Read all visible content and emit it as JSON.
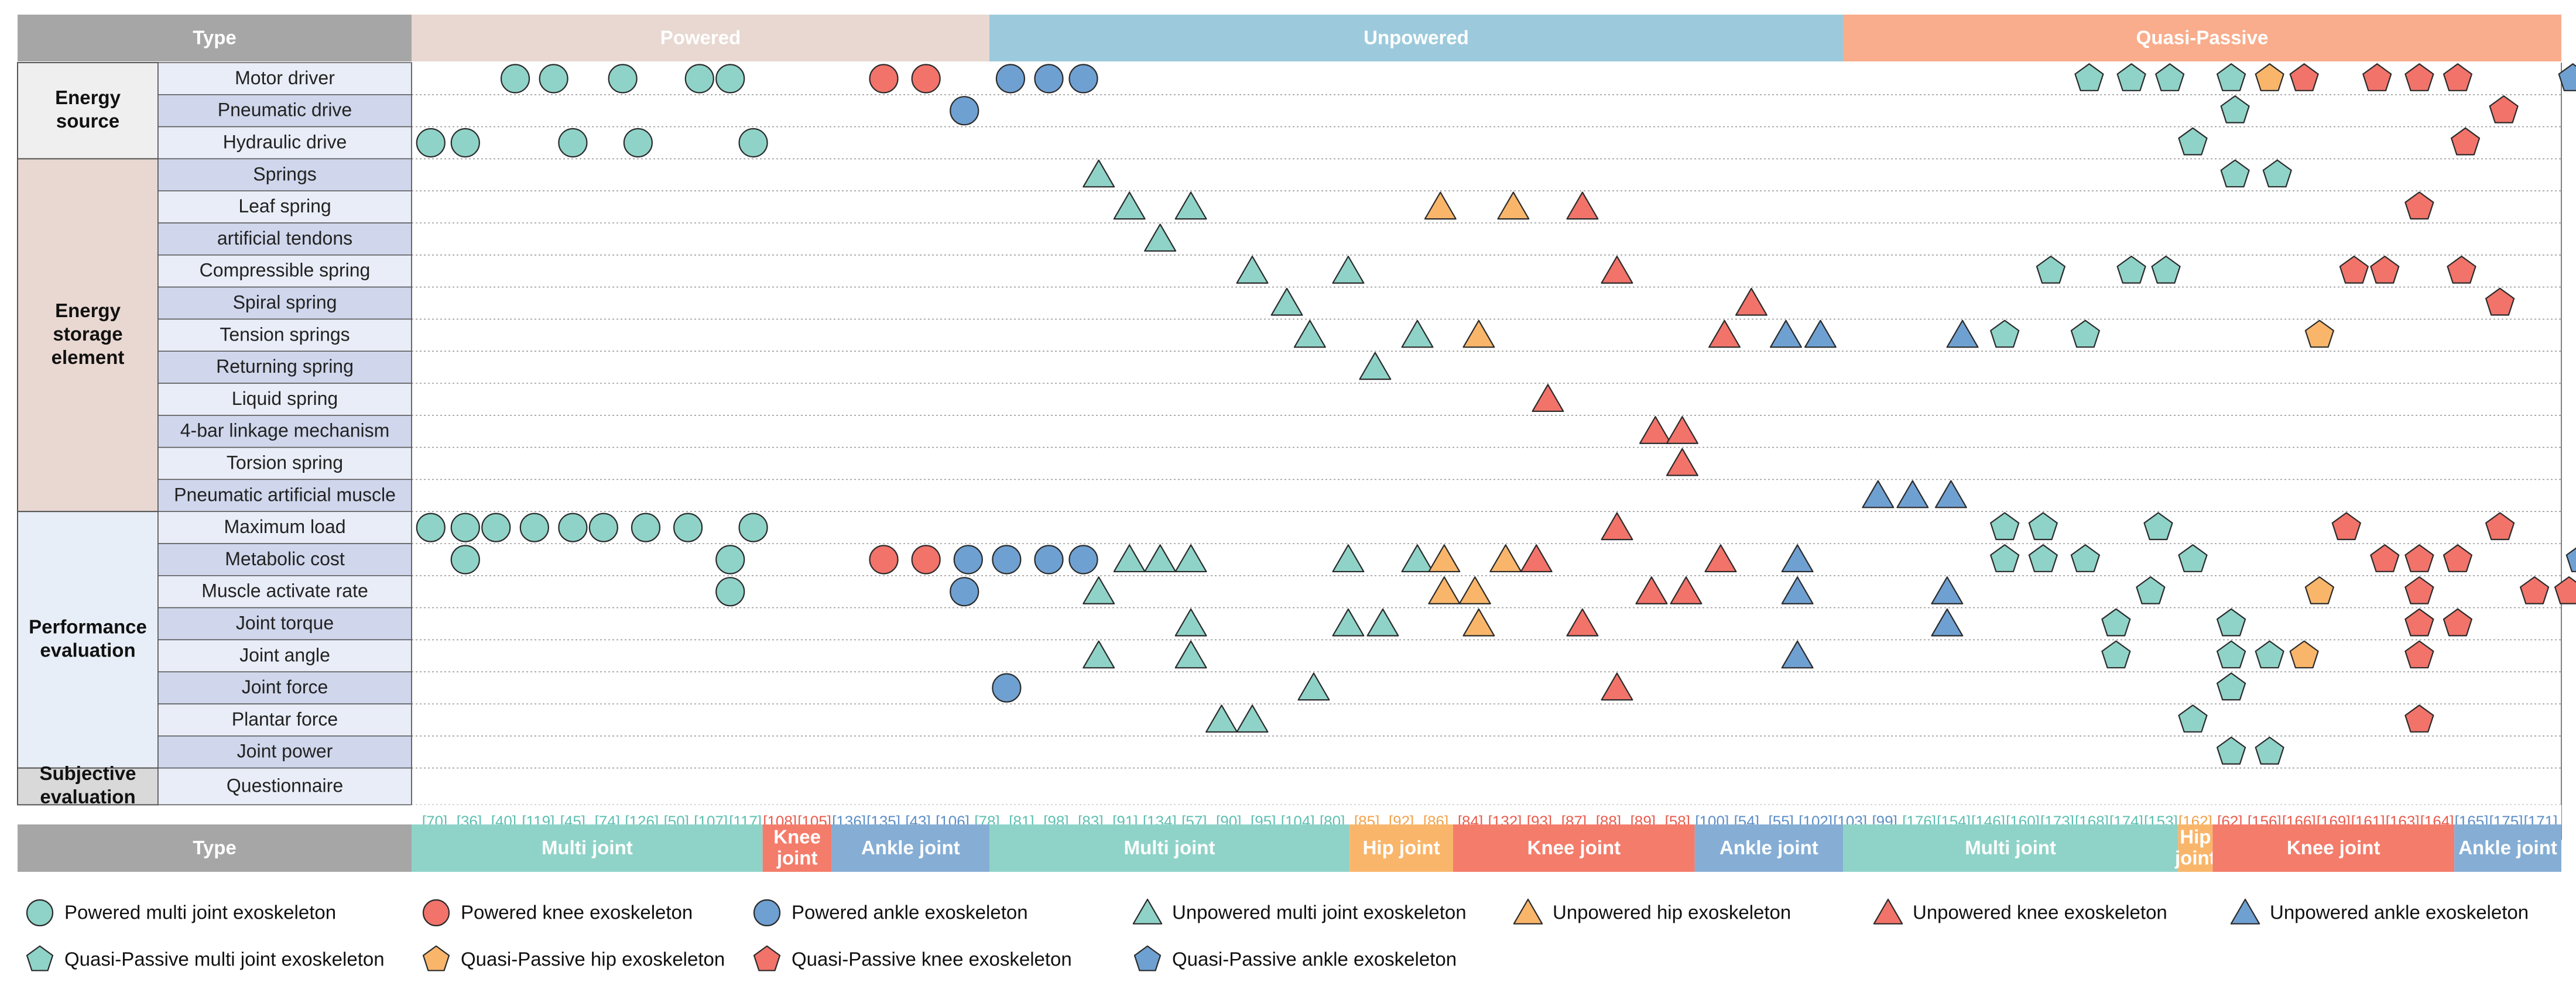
{
  "colors": {
    "header_type": "#a6a6a6",
    "header_powered": "#e8d8d1",
    "header_unpowered": "#9ccadc",
    "header_quasi": "#f9ad8c",
    "multi": "#8fd3c8",
    "hip": "#f9b66b",
    "knee": "#f2736a",
    "ankle": "#6fa0d2",
    "sub_multi": "#8fd3c8",
    "sub_hip": "#f9b66b",
    "sub_knee": "#f47c6b",
    "sub_ankle": "#86aed5",
    "group_energy_source": "#efefef",
    "group_energy_storage": "#e8d8d1",
    "group_performance": "#e8eef7",
    "group_subjective": "#d9d9d9",
    "row_a": "#d0d7ec",
    "row_b": "#e9edf7"
  },
  "chart_data": {
    "type": "table",
    "header_label": "Type",
    "types": [
      {
        "name": "Powered",
        "col_start": 0,
        "col_end": 14
      },
      {
        "name": "Unpowered",
        "col_start": 15,
        "col_end": 36
      },
      {
        "name": "Quasi-Passive",
        "col_start": 37,
        "col_end": 55
      }
    ],
    "subtypes": [
      {
        "name": "Multi joint",
        "col_start": 0,
        "col_end": 8,
        "kind": "multi"
      },
      {
        "name": "Knee joint",
        "col_start": 9,
        "col_end": 10,
        "kind": "knee"
      },
      {
        "name": "Ankle joint",
        "col_start": 11,
        "col_end": 14,
        "kind": "ankle"
      },
      {
        "name": "Multi joint",
        "col_start": 15,
        "col_end": 23,
        "kind": "multi"
      },
      {
        "name": "Hip joint",
        "col_start": 24,
        "col_end": 25,
        "kind": "hip"
      },
      {
        "name": "Knee joint",
        "col_start": 26,
        "col_end": 31,
        "kind": "knee"
      },
      {
        "name": "Ankle joint",
        "col_start": 32,
        "col_end": 36,
        "kind": "ankle"
      },
      {
        "name": "Multi joint",
        "col_start": 37,
        "col_end": 44,
        "kind": "multi"
      },
      {
        "name": "Hip joint",
        "col_start": 45,
        "col_end": 45,
        "kind": "hip"
      },
      {
        "name": "Knee joint",
        "col_start": 46,
        "col_end": 52,
        "kind": "knee"
      },
      {
        "name": "Ankle joint",
        "col_start": 53,
        "col_end": 55,
        "kind": "ankle"
      }
    ],
    "references": [
      "[70]",
      "[36]",
      "[40]",
      "[119]",
      "[45]",
      "[74]",
      "[126]",
      "[50]",
      "[107]",
      "[117]",
      "[108]",
      "[105]",
      "[136]",
      "[135]",
      "[43]",
      "[106]",
      "[78]",
      "[81]",
      "[98]",
      "[83]",
      "[91]",
      "[134]",
      "[57]",
      "[90]",
      "[95]",
      "[104]",
      "[80]",
      "[85]",
      "[92]",
      "[86]",
      "[84]",
      "[132]",
      "[93]",
      "[87]",
      "[88]",
      "[89]",
      "[58]",
      "[100]",
      "[54]",
      "[55]",
      "[102]",
      "[103]",
      "[99]",
      "[176]",
      "[154]",
      "[146]",
      "[160]",
      "[173]",
      "[168]",
      "[174]",
      "[153]",
      "[162]",
      "[62]",
      "[156]",
      "[166]",
      "[169]",
      "[161]",
      "[163]",
      "[164]",
      "[165]",
      "[175]",
      "[171]"
    ],
    "groups": [
      {
        "name": "Energy source",
        "rows": [
          "Motor driver",
          "Pneumatic drive",
          "Hydraulic drive"
        ]
      },
      {
        "name": "Energy storage element",
        "rows": [
          "Springs",
          "Leaf spring",
          "artificial  tendons",
          "Compressible spring",
          "Spiral spring",
          "Tension springs",
          "Returning spring",
          "Liquid spring",
          "4-bar linkage mechanism",
          "Torsion spring",
          "Pneumatic artificial muscle"
        ]
      },
      {
        "name": "Performance evaluation",
        "rows": [
          "Maximum load",
          "Metabolic cost",
          "Muscle activate rate",
          "Joint torque",
          "Joint angle",
          "Joint force",
          "Plantar force",
          "Joint power"
        ]
      },
      {
        "name": "Subjective evaluation",
        "rows": [
          "Questionnaire"
        ]
      }
    ],
    "marks": [
      {
        "row": 0,
        "x": [
          0.2,
          1.2,
          3.0,
          5.0,
          5.8
        ],
        "shape": "circle",
        "kind": "multi"
      },
      {
        "row": 0,
        "x": [
          9.8,
          10.9
        ],
        "shape": "circle",
        "kind": "knee"
      },
      {
        "row": 0,
        "x": [
          13.1,
          14.1,
          15.0
        ],
        "shape": "circle",
        "kind": "ankle"
      },
      {
        "row": 0,
        "x": [
          41.2,
          42.3,
          43.3,
          44.9
        ],
        "shape": "pentagon",
        "kind": "multi"
      },
      {
        "row": 0,
        "x": [
          45.9
        ],
        "shape": "pentagon",
        "kind": "hip"
      },
      {
        "row": 0,
        "x": [
          46.8,
          48.7,
          49.8,
          50.8
        ],
        "shape": "pentagon",
        "kind": "knee"
      },
      {
        "row": 0,
        "x": [
          53.8,
          54.8,
          55.8
        ],
        "shape": "pentagon",
        "kind": "ankle"
      },
      {
        "row": 1,
        "x": [
          11.9
        ],
        "shape": "circle",
        "kind": "ankle"
      },
      {
        "row": 1,
        "x": [
          45.0
        ],
        "shape": "pentagon",
        "kind": "multi"
      },
      {
        "row": 1,
        "x": [
          52.0
        ],
        "shape": "pentagon",
        "kind": "knee"
      },
      {
        "row": 2,
        "x": [
          -2.0,
          -1.1,
          1.7,
          3.4,
          6.4
        ],
        "shape": "circle",
        "kind": "multi"
      },
      {
        "row": 2,
        "x": [
          43.9
        ],
        "shape": "pentagon",
        "kind": "multi"
      },
      {
        "row": 2,
        "x": [
          51.0
        ],
        "shape": "pentagon",
        "kind": "knee"
      },
      {
        "row": 3,
        "x": [
          15.4
        ],
        "shape": "triangle",
        "kind": "multi"
      },
      {
        "row": 3,
        "x": [
          45.0,
          46.1
        ],
        "shape": "pentagon",
        "kind": "multi"
      },
      {
        "row": 4,
        "x": [
          16.2,
          17.8
        ],
        "shape": "triangle",
        "kind": "multi"
      },
      {
        "row": 4,
        "x": [
          24.3,
          26.2
        ],
        "shape": "triangle",
        "kind": "hip"
      },
      {
        "row": 4,
        "x": [
          28.0
        ],
        "shape": "triangle",
        "kind": "knee"
      },
      {
        "row": 4,
        "x": [
          49.8
        ],
        "shape": "pentagon",
        "kind": "knee"
      },
      {
        "row": 5,
        "x": [
          17.0
        ],
        "shape": "triangle",
        "kind": "multi"
      },
      {
        "row": 6,
        "x": [
          19.4,
          21.9
        ],
        "shape": "triangle",
        "kind": "multi"
      },
      {
        "row": 6,
        "x": [
          28.9
        ],
        "shape": "triangle",
        "kind": "knee"
      },
      {
        "row": 6,
        "x": [
          40.2,
          42.3,
          43.2
        ],
        "shape": "pentagon",
        "kind": "multi"
      },
      {
        "row": 6,
        "x": [
          48.1,
          48.9,
          50.9
        ],
        "shape": "pentagon",
        "kind": "knee"
      },
      {
        "row": 7,
        "x": [
          20.3
        ],
        "shape": "triangle",
        "kind": "multi"
      },
      {
        "row": 7,
        "x": [
          32.4
        ],
        "shape": "triangle",
        "kind": "knee"
      },
      {
        "row": 7,
        "x": [
          51.9
        ],
        "shape": "pentagon",
        "kind": "knee"
      },
      {
        "row": 8,
        "x": [
          20.9,
          23.7
        ],
        "shape": "triangle",
        "kind": "multi"
      },
      {
        "row": 8,
        "x": [
          25.3
        ],
        "shape": "triangle",
        "kind": "hip"
      },
      {
        "row": 8,
        "x": [
          31.7
        ],
        "shape": "triangle",
        "kind": "knee"
      },
      {
        "row": 8,
        "x": [
          33.3,
          34.2,
          37.9
        ],
        "shape": "triangle",
        "kind": "ankle"
      },
      {
        "row": 8,
        "x": [
          39.0,
          41.1
        ],
        "shape": "pentagon",
        "kind": "multi"
      },
      {
        "row": 8,
        "x": [
          47.2
        ],
        "shape": "pentagon",
        "kind": "hip"
      },
      {
        "row": 8,
        "x": [
          56.3
        ],
        "shape": "pentagon",
        "kind": "ankle"
      },
      {
        "row": 9,
        "x": [
          22.6
        ],
        "shape": "triangle",
        "kind": "multi"
      },
      {
        "row": 9,
        "x": [
          56.3
        ],
        "shape": "pentagon",
        "kind": "ankle"
      },
      {
        "row": 10,
        "x": [
          27.1
        ],
        "shape": "triangle",
        "kind": "knee"
      },
      {
        "row": 11,
        "x": [
          29.9,
          30.6
        ],
        "shape": "triangle",
        "kind": "knee"
      },
      {
        "row": 12,
        "x": [
          30.6
        ],
        "shape": "triangle",
        "kind": "knee"
      },
      {
        "row": 13,
        "x": [
          35.7,
          36.6,
          37.6
        ],
        "shape": "triangle",
        "kind": "ankle"
      },
      {
        "row": 14,
        "x": [
          -2.0,
          -1.1,
          -0.3,
          0.7,
          1.7,
          2.5,
          3.6,
          4.7,
          6.4
        ],
        "shape": "circle",
        "kind": "multi"
      },
      {
        "row": 14,
        "x": [
          28.9
        ],
        "shape": "triangle",
        "kind": "knee"
      },
      {
        "row": 14,
        "x": [
          39.0,
          40.0,
          43.0
        ],
        "shape": "pentagon",
        "kind": "multi"
      },
      {
        "row": 14,
        "x": [
          47.9,
          51.9
        ],
        "shape": "pentagon",
        "kind": "knee"
      },
      {
        "row": 15,
        "x": [
          -1.1,
          5.8
        ],
        "shape": "circle",
        "kind": "multi"
      },
      {
        "row": 15,
        "x": [
          9.8,
          10.9
        ],
        "shape": "circle",
        "kind": "knee"
      },
      {
        "row": 15,
        "x": [
          12.0,
          13.0,
          14.1,
          15.0
        ],
        "shape": "circle",
        "kind": "ankle"
      },
      {
        "row": 15,
        "x": [
          16.2,
          17.0,
          17.8,
          21.9,
          23.7
        ],
        "shape": "triangle",
        "kind": "multi"
      },
      {
        "row": 15,
        "x": [
          24.4,
          26.0
        ],
        "shape": "triangle",
        "kind": "hip"
      },
      {
        "row": 15,
        "x": [
          26.8,
          31.6
        ],
        "shape": "triangle",
        "kind": "knee"
      },
      {
        "row": 15,
        "x": [
          33.6
        ],
        "shape": "triangle",
        "kind": "ankle"
      },
      {
        "row": 15,
        "x": [
          39.0,
          40.0,
          41.1,
          43.9
        ],
        "shape": "pentagon",
        "kind": "multi"
      },
      {
        "row": 15,
        "x": [
          48.9,
          49.8,
          50.8
        ],
        "shape": "pentagon",
        "kind": "knee"
      },
      {
        "row": 15,
        "x": [
          54.0
        ],
        "shape": "pentagon",
        "kind": "ankle"
      },
      {
        "row": 16,
        "x": [
          5.8
        ],
        "shape": "circle",
        "kind": "multi"
      },
      {
        "row": 16,
        "x": [
          11.9
        ],
        "shape": "circle",
        "kind": "ankle"
      },
      {
        "row": 16,
        "x": [
          15.4
        ],
        "shape": "triangle",
        "kind": "multi"
      },
      {
        "row": 16,
        "x": [
          24.4,
          25.2
        ],
        "shape": "triangle",
        "kind": "hip"
      },
      {
        "row": 16,
        "x": [
          29.8,
          30.7
        ],
        "shape": "triangle",
        "kind": "knee"
      },
      {
        "row": 16,
        "x": [
          33.6,
          37.5
        ],
        "shape": "triangle",
        "kind": "ankle"
      },
      {
        "row": 16,
        "x": [
          42.8
        ],
        "shape": "pentagon",
        "kind": "multi"
      },
      {
        "row": 16,
        "x": [
          47.2
        ],
        "shape": "pentagon",
        "kind": "hip"
      },
      {
        "row": 16,
        "x": [
          49.8,
          52.8,
          53.7
        ],
        "shape": "pentagon",
        "kind": "knee"
      },
      {
        "row": 16,
        "x": [
          55.8
        ],
        "shape": "pentagon",
        "kind": "ankle"
      },
      {
        "row": 17,
        "x": [
          17.8,
          21.9,
          22.8
        ],
        "shape": "triangle",
        "kind": "multi"
      },
      {
        "row": 17,
        "x": [
          25.3
        ],
        "shape": "triangle",
        "kind": "hip"
      },
      {
        "row": 17,
        "x": [
          28.0
        ],
        "shape": "triangle",
        "kind": "knee"
      },
      {
        "row": 17,
        "x": [
          37.5
        ],
        "shape": "triangle",
        "kind": "ankle"
      },
      {
        "row": 17,
        "x": [
          41.9,
          44.9
        ],
        "shape": "pentagon",
        "kind": "multi"
      },
      {
        "row": 17,
        "x": [
          49.8,
          50.8
        ],
        "shape": "pentagon",
        "kind": "knee"
      },
      {
        "row": 18,
        "x": [
          15.4,
          17.8
        ],
        "shape": "triangle",
        "kind": "multi"
      },
      {
        "row": 18,
        "x": [
          33.6
        ],
        "shape": "triangle",
        "kind": "ankle"
      },
      {
        "row": 18,
        "x": [
          41.9,
          44.9,
          45.9
        ],
        "shape": "pentagon",
        "kind": "multi"
      },
      {
        "row": 18,
        "x": [
          46.8
        ],
        "shape": "pentagon",
        "kind": "hip"
      },
      {
        "row": 18,
        "x": [
          49.8
        ],
        "shape": "pentagon",
        "kind": "knee"
      },
      {
        "row": 19,
        "x": [
          13.0
        ],
        "shape": "circle",
        "kind": "ankle"
      },
      {
        "row": 19,
        "x": [
          21.0
        ],
        "shape": "triangle",
        "kind": "multi"
      },
      {
        "row": 19,
        "x": [
          28.9
        ],
        "shape": "triangle",
        "kind": "knee"
      },
      {
        "row": 19,
        "x": [
          44.9
        ],
        "shape": "pentagon",
        "kind": "multi"
      },
      {
        "row": 20,
        "x": [
          18.6,
          19.4
        ],
        "shape": "triangle",
        "kind": "multi"
      },
      {
        "row": 20,
        "x": [
          43.9
        ],
        "shape": "pentagon",
        "kind": "multi"
      },
      {
        "row": 20,
        "x": [
          49.8
        ],
        "shape": "pentagon",
        "kind": "knee"
      },
      {
        "row": 21,
        "x": [
          44.9,
          45.9
        ],
        "shape": "pentagon",
        "kind": "multi"
      },
      {
        "row": 22,
        "x": [
          56.3
        ],
        "shape": "pentagon",
        "kind": "ankle"
      }
    ],
    "legend": [
      {
        "label": "Powered multi joint exoskeleton",
        "shape": "circle",
        "kind": "multi"
      },
      {
        "label": "Powered knee exoskeleton",
        "shape": "circle",
        "kind": "knee"
      },
      {
        "label": "Powered ankle exoskeleton",
        "shape": "circle",
        "kind": "ankle"
      },
      {
        "label": "Unpowered multi joint exoskeleton",
        "shape": "triangle",
        "kind": "multi"
      },
      {
        "label": "Unpowered hip exoskeleton",
        "shape": "triangle",
        "kind": "hip"
      },
      {
        "label": "Unpowered knee exoskeleton",
        "shape": "triangle",
        "kind": "knee"
      },
      {
        "label": "Unpowered ankle exoskeleton",
        "shape": "triangle",
        "kind": "ankle"
      },
      {
        "label": "Quasi-Passive multi joint exoskeleton",
        "shape": "pentagon",
        "kind": "multi"
      },
      {
        "label": "Quasi-Passive hip exoskeleton",
        "shape": "pentagon",
        "kind": "hip"
      },
      {
        "label": "Quasi-Passive knee exoskeleton",
        "shape": "pentagon",
        "kind": "knee"
      },
      {
        "label": "Quasi-Passive ankle exoskeleton",
        "shape": "pentagon",
        "kind": "ankle"
      }
    ]
  }
}
